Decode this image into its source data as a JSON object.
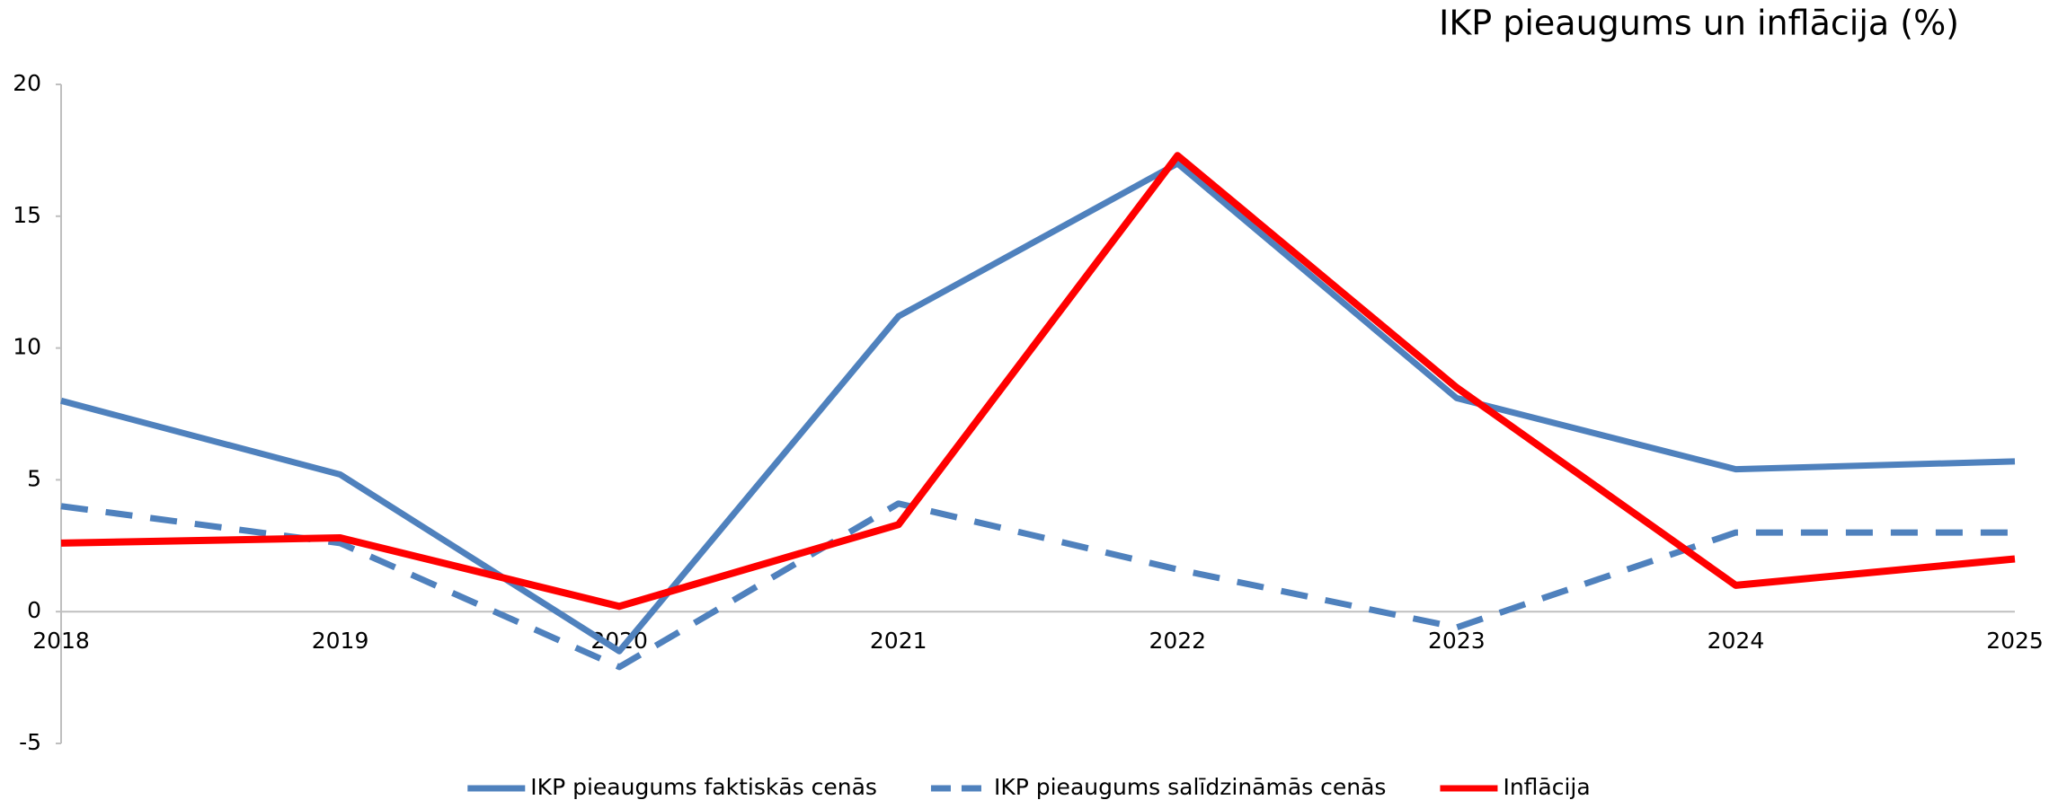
{
  "chart_data": {
    "type": "line",
    "title": "IKP pieaugums un  inflācija (%)",
    "categories": [
      "2018",
      "2019",
      "2020",
      "2021",
      "2022",
      "2023",
      "2024",
      "2025"
    ],
    "series": [
      {
        "name": "IKP pieaugums faktiskās cenās",
        "color": "#4f81bd",
        "dashed": false,
        "values": [
          8.0,
          5.2,
          -1.5,
          11.2,
          17.0,
          8.1,
          5.4,
          5.7
        ]
      },
      {
        "name": "IKP pieaugums salīdzināmās  cenās",
        "color": "#4f81bd",
        "dashed": true,
        "values": [
          4.0,
          2.6,
          -2.1,
          4.1,
          1.6,
          -0.6,
          3.0,
          3.0
        ]
      },
      {
        "name": "Inflācija",
        "color": "#ff0000",
        "dashed": false,
        "values": [
          2.6,
          2.8,
          0.2,
          3.3,
          17.3,
          8.5,
          1.0,
          2.0
        ]
      }
    ],
    "ylim": [
      -5,
      20
    ],
    "yticks": [
      -5,
      0,
      5,
      10,
      15,
      20
    ],
    "grid": false,
    "legend": "bottom"
  }
}
